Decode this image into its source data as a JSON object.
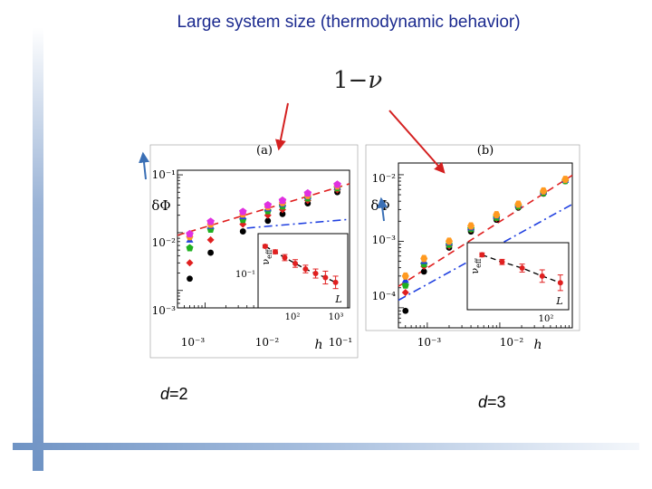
{
  "slide": {
    "title": "Large system size (thermodynamic behavior)",
    "formula_prefix": "1−",
    "formula_symbol": "ν",
    "caption_left_var": "d",
    "caption_left_val": "=2",
    "caption_right_var": "d",
    "caption_right_val": "=3",
    "colors": {
      "title": "#1b2a8f",
      "arrow_red": "#d42020",
      "arrow_blue": "#3a6fb5",
      "accent_bar": "#6f93c4"
    }
  },
  "chart_data": [
    {
      "type": "scatter",
      "panel_label": "(a)",
      "xlabel": "h",
      "ylabel": "δΦ",
      "x_scale": "log",
      "y_scale": "log",
      "xlim": [
        0.0004,
        0.12
      ],
      "ylim": [
        0.0005,
        0.12
      ],
      "x_ticks": [
        "10⁻³",
        "10⁻²",
        "10⁻¹"
      ],
      "y_ticks": [
        "10⁻¹",
        "10⁻²",
        "10⁻³"
      ],
      "series": [
        {
          "color": "#000000",
          "x": [
            0.0006,
            0.0012,
            0.0035,
            0.008,
            0.013,
            0.03,
            0.08
          ],
          "y": [
            0.0016,
            0.0045,
            0.0105,
            0.016,
            0.021,
            0.032,
            0.05
          ]
        },
        {
          "color": "#e02020",
          "x": [
            0.0006,
            0.0012,
            0.0035,
            0.008,
            0.013,
            0.03,
            0.08
          ],
          "y": [
            0.003,
            0.0075,
            0.014,
            0.02,
            0.025,
            0.036,
            0.055
          ]
        },
        {
          "color": "#20b020",
          "x": [
            0.0006,
            0.0012,
            0.0035,
            0.008,
            0.013,
            0.03,
            0.08
          ],
          "y": [
            0.0055,
            0.0115,
            0.017,
            0.024,
            0.029,
            0.04,
            0.06
          ]
        },
        {
          "color": "#2040e0",
          "x": [
            0.0006,
            0.0012,
            0.0035,
            0.008,
            0.013,
            0.03,
            0.08
          ],
          "y": [
            0.0075,
            0.013,
            0.019,
            0.026,
            0.031,
            0.042,
            0.062
          ]
        },
        {
          "color": "#ff9a20",
          "x": [
            0.0006,
            0.0012,
            0.0035,
            0.008,
            0.013,
            0.03,
            0.08
          ],
          "y": [
            0.0085,
            0.014,
            0.021,
            0.028,
            0.033,
            0.044,
            0.064
          ]
        },
        {
          "color": "#e030e0",
          "x": [
            0.0006,
            0.0012,
            0.0035,
            0.008,
            0.013,
            0.03,
            0.08
          ],
          "y": [
            0.0095,
            0.0155,
            0.023,
            0.03,
            0.036,
            0.048,
            0.068
          ]
        }
      ],
      "fit_lines": [
        {
          "style": "dashed",
          "color": "#e02020",
          "from": [
            0.0004,
            0.009
          ],
          "to": [
            0.12,
            0.07
          ]
        },
        {
          "style": "dash-dot",
          "color": "#2040e0",
          "from": [
            0.004,
            0.012
          ],
          "to": [
            0.12,
            0.017
          ]
        }
      ],
      "inset": {
        "ylabel": "ν_eff",
        "xlabel": "L",
        "x_scale": "log",
        "y_scale": "log",
        "xlim": [
          12,
          2000
        ],
        "ylim": [
          0.05,
          1.0
        ],
        "x_ticks": [
          "10²",
          "10³"
        ],
        "y_ticks": [
          "10⁻¹"
        ],
        "points": [
          {
            "x": 18,
            "y": 0.6,
            "err": 0.04
          },
          {
            "x": 32,
            "y": 0.48,
            "err": 0.04
          },
          {
            "x": 55,
            "y": 0.38,
            "err": 0.05
          },
          {
            "x": 100,
            "y": 0.3,
            "err": 0.05
          },
          {
            "x": 180,
            "y": 0.24,
            "err": 0.04
          },
          {
            "x": 320,
            "y": 0.2,
            "err": 0.04
          },
          {
            "x": 560,
            "y": 0.17,
            "err": 0.05
          },
          {
            "x": 1000,
            "y": 0.14,
            "err": 0.04
          }
        ]
      }
    },
    {
      "type": "scatter",
      "panel_label": "(b)",
      "xlabel": "h",
      "ylabel": "δΦ",
      "x_scale": "log",
      "y_scale": "log",
      "xlim": [
        0.0004,
        0.1
      ],
      "ylim": [
        5e-05,
        0.015
      ],
      "x_ticks": [
        "10⁻³",
        "10⁻²"
      ],
      "y_ticks": [
        "10⁻²",
        "10⁻³",
        "10⁻⁴"
      ],
      "series": [
        {
          "color": "#000000",
          "x": [
            0.0005,
            0.0009,
            0.002,
            0.004,
            0.009,
            0.018,
            0.04,
            0.08
          ],
          "y": [
            9e-05,
            0.00035,
            0.0008,
            0.0014,
            0.0021,
            0.0032,
            0.0052,
            0.008
          ]
        },
        {
          "color": "#e02020",
          "x": [
            0.0005,
            0.0009,
            0.002,
            0.004,
            0.009,
            0.018,
            0.04,
            0.08
          ],
          "y": [
            0.00017,
            0.00042,
            0.00085,
            0.0015,
            0.0022,
            0.0033,
            0.0053,
            0.0081
          ]
        },
        {
          "color": "#20b020",
          "x": [
            0.0005,
            0.0009,
            0.002,
            0.004,
            0.009,
            0.018,
            0.04,
            0.08
          ],
          "y": [
            0.00022,
            0.00046,
            0.0009,
            0.00155,
            0.0023,
            0.0034,
            0.0054,
            0.0082
          ]
        },
        {
          "color": "#2040e0",
          "x": [
            0.0005,
            0.0009,
            0.002,
            0.004,
            0.009,
            0.018,
            0.04,
            0.08
          ],
          "y": [
            0.00026,
            0.0005,
            0.00095,
            0.0016,
            0.0024,
            0.0035,
            0.0055,
            0.0083
          ]
        },
        {
          "color": "#ff9a20",
          "x": [
            0.0005,
            0.0009,
            0.002,
            0.004,
            0.009,
            0.018,
            0.04,
            0.08
          ],
          "y": [
            0.0003,
            0.00055,
            0.001,
            0.0017,
            0.0025,
            0.0036,
            0.0057,
            0.0085
          ]
        }
      ],
      "fit_lines": [
        {
          "style": "dashed",
          "color": "#e02020",
          "from": [
            0.0004,
            0.00021
          ],
          "to": [
            0.1,
            0.0098
          ]
        },
        {
          "style": "dash-dot",
          "color": "#2040e0",
          "from": [
            0.0004,
            0.00013
          ],
          "to": [
            0.1,
            0.0036
          ]
        }
      ],
      "inset": {
        "ylabel": "ν_eff",
        "xlabel": "L",
        "x_scale": "log",
        "y_scale": "log",
        "xlim": [
          12,
          400
        ],
        "ylim": [
          0.06,
          0.8
        ],
        "x_ticks": [
          "10²"
        ],
        "y_ticks": [],
        "points": [
          {
            "x": 20,
            "y": 0.5,
            "err": 0.04
          },
          {
            "x": 40,
            "y": 0.38,
            "err": 0.04
          },
          {
            "x": 80,
            "y": 0.3,
            "err": 0.05
          },
          {
            "x": 160,
            "y": 0.22,
            "err": 0.06
          },
          {
            "x": 300,
            "y": 0.17,
            "err": 0.06
          }
        ]
      }
    }
  ]
}
